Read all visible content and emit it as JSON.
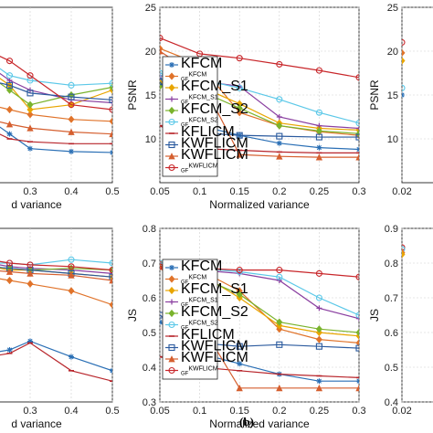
{
  "figure": {
    "panel_label": "(b)"
  },
  "colors": {
    "KFCM": "#2a6fb5",
    "GF_KFCM": "#e0732a",
    "KFCM_S1": "#e8a500",
    "GF_KFCM_S1": "#8a3fa0",
    "KFCM_S2": "#7ab32c",
    "GF_KFCM_S2": "#5bc8e8",
    "KFLICM": "#b8252b",
    "KWFLICM": "#2b5a9e",
    "GF_KFLICM": "#d55f2f",
    "GF_KWFLICM": "#c8262a"
  },
  "legend": [
    {
      "key": "KFCM",
      "pre": "",
      "main": "KFCM",
      "marker": "star"
    },
    {
      "key": "GF_KFCM",
      "pre": "GF",
      "main": "KFCM",
      "marker": "diamond",
      "sup": true
    },
    {
      "key": "KFCM_S1",
      "pre": "",
      "main": "KFCM_S1",
      "marker": "diamond"
    },
    {
      "key": "GF_KFCM_S1",
      "pre": "GF",
      "main": "KFCM_S1",
      "marker": "plus",
      "sup": true
    },
    {
      "key": "KFCM_S2",
      "pre": "",
      "main": "KFCM_S2",
      "marker": "diamond"
    },
    {
      "key": "GF_KFCM_S2",
      "pre": "GF",
      "main": "KFCM_S2",
      "marker": "circle",
      "sup": true
    },
    {
      "key": "KFLICM",
      "pre": "",
      "main": "KFLICM",
      "marker": "dash"
    },
    {
      "key": "KWFLICM",
      "pre": "",
      "main": "KWFLICM",
      "marker": "square"
    },
    {
      "key": "GF_KFLICM",
      "pre": "",
      "main": "KWFLICM",
      "marker": "triangle"
    },
    {
      "key": "GF_KWFLICM",
      "pre": "GF",
      "main": "KWFLICM",
      "marker": "circle",
      "sup": true
    }
  ],
  "chart_data": [
    {
      "type": "line",
      "panel": "top-left",
      "xlabel": "d variance",
      "ylabel": "",
      "xlim": [
        0.2,
        0.5
      ],
      "ylim": [
        6,
        24
      ],
      "xticks": [
        0.3,
        0.4,
        0.5
      ],
      "xtick_labels": [
        "0.3",
        "0.4",
        "0.5"
      ],
      "yticks": [],
      "x": [
        0.2,
        0.25,
        0.3,
        0.4,
        0.5
      ],
      "series": [
        {
          "key": "KFCM",
          "values": [
            12.5,
            11.0,
            9.5,
            9.2,
            9.1
          ]
        },
        {
          "key": "GF_KFCM",
          "values": [
            14.0,
            13.5,
            13.0,
            12.5,
            12.3
          ]
        },
        {
          "key": "KFCM_S1",
          "values": [
            17.5,
            16.0,
            13.5,
            14.0,
            15.5
          ]
        },
        {
          "key": "GF_KFCM_S1",
          "values": [
            18.0,
            16.5,
            15.5,
            14.5,
            14.2
          ]
        },
        {
          "key": "KFCM_S2",
          "values": [
            17.0,
            15.5,
            14.0,
            15.0,
            15.8
          ]
        },
        {
          "key": "GF_KFCM_S2",
          "values": [
            18.5,
            17.0,
            16.5,
            16.0,
            16.2
          ]
        },
        {
          "key": "KFLICM",
          "values": [
            11.5,
            10.5,
            10.2,
            10.0,
            10.0
          ]
        },
        {
          "key": "KWFLICM",
          "values": [
            16.5,
            16.0,
            15.2,
            14.8,
            14.5
          ]
        },
        {
          "key": "GF_KFLICM",
          "values": [
            12.5,
            12.0,
            11.6,
            11.2,
            11.0
          ]
        },
        {
          "key": "GF_KWFLICM",
          "values": [
            19.5,
            18.5,
            17.0,
            14.0,
            13.5
          ]
        }
      ]
    },
    {
      "type": "line",
      "panel": "top-middle",
      "xlabel": "Normalized variance",
      "ylabel": "PSNR",
      "xlim": [
        0.05,
        0.3
      ],
      "ylim": [
        5,
        25
      ],
      "xticks": [
        0.05,
        0.1,
        0.15,
        0.2,
        0.25,
        0.3
      ],
      "xtick_labels": [
        "0.05",
        "0.1",
        "0.15",
        "0.2",
        "0.25",
        "0.3"
      ],
      "yticks": [
        10,
        15,
        20,
        25
      ],
      "ytick_labels": [
        "10",
        "15",
        "20",
        "25"
      ],
      "x": [
        0.05,
        0.1,
        0.15,
        0.2,
        0.25,
        0.3
      ],
      "series": [
        {
          "key": "KFCM",
          "values": [
            16.8,
            11.5,
            10.4,
            9.5,
            9.0,
            8.8
          ]
        },
        {
          "key": "GF_KFCM",
          "values": [
            20.3,
            18.5,
            13.0,
            11.5,
            10.8,
            10.4
          ]
        },
        {
          "key": "KFCM_S1",
          "values": [
            16.4,
            16.0,
            14.0,
            11.8,
            11.2,
            11.0
          ]
        },
        {
          "key": "GF_KFCM_S1",
          "values": [
            17.2,
            16.6,
            16.0,
            12.5,
            11.5,
            11.2
          ]
        },
        {
          "key": "KFCM_S2",
          "values": [
            16.0,
            15.5,
            13.5,
            11.5,
            10.9,
            10.6
          ]
        },
        {
          "key": "GF_KFCM_S2",
          "values": [
            17.5,
            16.8,
            15.8,
            14.5,
            13.0,
            11.8
          ]
        },
        {
          "key": "KFLICM",
          "values": [
            11.5,
            8.9,
            8.7,
            8.5,
            8.4,
            8.4
          ]
        },
        {
          "key": "KWFLICM",
          "values": [
            16.5,
            10.7,
            10.4,
            10.3,
            10.2,
            10.2
          ]
        },
        {
          "key": "GF_KFLICM",
          "values": [
            20.0,
            17.0,
            8.2,
            8.0,
            7.9,
            7.9
          ]
        },
        {
          "key": "GF_KWFLICM",
          "values": [
            21.5,
            19.7,
            19.2,
            18.5,
            17.8,
            17.0
          ]
        }
      ]
    },
    {
      "type": "line",
      "panel": "top-right",
      "xlabel": "",
      "ylabel": "PSNR",
      "xlim": [
        0.02,
        0.3
      ],
      "ylim": [
        5,
        25
      ],
      "xticks": [
        0.02
      ],
      "xtick_labels": [
        "0.02"
      ],
      "yticks": [
        10,
        15,
        20,
        25
      ],
      "ytick_labels": [
        "10",
        "15",
        "20",
        "25"
      ],
      "x": [
        0.02
      ],
      "series": [
        {
          "key": "GF_KWFLICM",
          "values": [
            21.0
          ]
        },
        {
          "key": "GF_KFCM",
          "values": [
            19.8
          ]
        },
        {
          "key": "KFCM_S1",
          "values": [
            18.9
          ]
        },
        {
          "key": "GF_KFCM_S2",
          "values": [
            15.8
          ]
        },
        {
          "key": "KFCM",
          "values": [
            15.0
          ]
        }
      ]
    },
    {
      "type": "line",
      "panel": "bottom-left",
      "xlabel": "d variance",
      "ylabel": "",
      "xlim": [
        0.2,
        0.5
      ],
      "ylim": [
        0.3,
        0.8
      ],
      "xticks": [
        0.3,
        0.4,
        0.5
      ],
      "xtick_labels": [
        "0.3",
        "0.4",
        "0.5"
      ],
      "yticks": [],
      "x": [
        0.2,
        0.25,
        0.3,
        0.4,
        0.5
      ],
      "series": [
        {
          "key": "KFCM",
          "values": [
            0.44,
            0.45,
            0.475,
            0.43,
            0.39
          ]
        },
        {
          "key": "GF_KFCM",
          "values": [
            0.66,
            0.65,
            0.64,
            0.62,
            0.58
          ]
        },
        {
          "key": "KFCM_S1",
          "values": [
            0.69,
            0.68,
            0.68,
            0.67,
            0.66
          ]
        },
        {
          "key": "GF_KFCM_S1",
          "values": [
            0.7,
            0.69,
            0.685,
            0.68,
            0.67
          ]
        },
        {
          "key": "KFCM_S2",
          "values": [
            0.69,
            0.685,
            0.68,
            0.685,
            0.68
          ]
        },
        {
          "key": "GF_KFCM_S2",
          "values": [
            0.7,
            0.7,
            0.695,
            0.71,
            0.7
          ]
        },
        {
          "key": "KFLICM",
          "values": [
            0.43,
            0.44,
            0.47,
            0.39,
            0.36
          ]
        },
        {
          "key": "KWFLICM",
          "values": [
            0.69,
            0.685,
            0.68,
            0.67,
            0.66
          ]
        },
        {
          "key": "GF_KFLICM",
          "values": [
            0.68,
            0.675,
            0.67,
            0.665,
            0.65
          ]
        },
        {
          "key": "GF_KWFLICM",
          "values": [
            0.71,
            0.7,
            0.695,
            0.69,
            0.68
          ]
        }
      ]
    },
    {
      "type": "line",
      "panel": "bottom-middle",
      "xlabel": "Normalized variance",
      "ylabel": "JS",
      "xlim": [
        0.05,
        0.3
      ],
      "ylim": [
        0.3,
        0.8
      ],
      "xticks": [
        0.05,
        0.1,
        0.15,
        0.2,
        0.25,
        0.3
      ],
      "xtick_labels": [
        "0.05",
        "0.1",
        "0.15",
        "0.2",
        "0.25",
        "0.3"
      ],
      "yticks": [
        0.3,
        0.4,
        0.5,
        0.6,
        0.7,
        0.8
      ],
      "ytick_labels": [
        "0.3",
        "0.4",
        "0.5",
        "0.6",
        "0.7",
        "0.8"
      ],
      "x": [
        0.05,
        0.1,
        0.15,
        0.2,
        0.25,
        0.3
      ],
      "series": [
        {
          "key": "KFCM",
          "values": [
            0.53,
            0.44,
            0.41,
            0.38,
            0.36,
            0.36
          ]
        },
        {
          "key": "GF_KFCM",
          "values": [
            0.7,
            0.68,
            0.62,
            0.51,
            0.48,
            0.47
          ]
        },
        {
          "key": "KFCM_S1",
          "values": [
            0.69,
            0.67,
            0.6,
            0.52,
            0.5,
            0.49
          ]
        },
        {
          "key": "GF_KFCM_S1",
          "values": [
            0.7,
            0.68,
            0.67,
            0.65,
            0.57,
            0.54
          ]
        },
        {
          "key": "KFCM_S2",
          "values": [
            0.69,
            0.66,
            0.61,
            0.53,
            0.51,
            0.5
          ]
        },
        {
          "key": "GF_KFCM_S2",
          "values": [
            0.7,
            0.685,
            0.675,
            0.66,
            0.6,
            0.55
          ]
        },
        {
          "key": "KFLICM",
          "values": [
            0.43,
            0.4,
            0.39,
            0.38,
            0.375,
            0.37
          ]
        },
        {
          "key": "KWFLICM",
          "values": [
            0.55,
            0.47,
            0.46,
            0.465,
            0.46,
            0.455
          ]
        },
        {
          "key": "GF_KFLICM",
          "values": [
            0.69,
            0.53,
            0.34,
            0.34,
            0.34,
            0.34
          ]
        },
        {
          "key": "GF_KWFLICM",
          "values": [
            0.69,
            0.685,
            0.68,
            0.68,
            0.67,
            0.66
          ]
        }
      ]
    },
    {
      "type": "line",
      "panel": "bottom-right",
      "xlabel": "",
      "ylabel": "JS",
      "xlim": [
        0.02,
        0.3
      ],
      "ylim": [
        0.4,
        0.9
      ],
      "xticks": [
        0.02
      ],
      "xtick_labels": [
        "0.02"
      ],
      "yticks": [
        0.4,
        0.5,
        0.6,
        0.7,
        0.8,
        0.9
      ],
      "ytick_labels": [
        "0.4",
        "0.5",
        "0.6",
        "0.7",
        "0.8",
        "0.9"
      ],
      "x": [
        0.02
      ],
      "series": [
        {
          "key": "GF_KWFLICM",
          "values": [
            0.845
          ]
        },
        {
          "key": "GF_KFCM_S2",
          "values": [
            0.84
          ]
        },
        {
          "key": "GF_KFCM",
          "values": [
            0.83
          ]
        },
        {
          "key": "KFCM_S1",
          "values": [
            0.825
          ]
        }
      ]
    }
  ]
}
